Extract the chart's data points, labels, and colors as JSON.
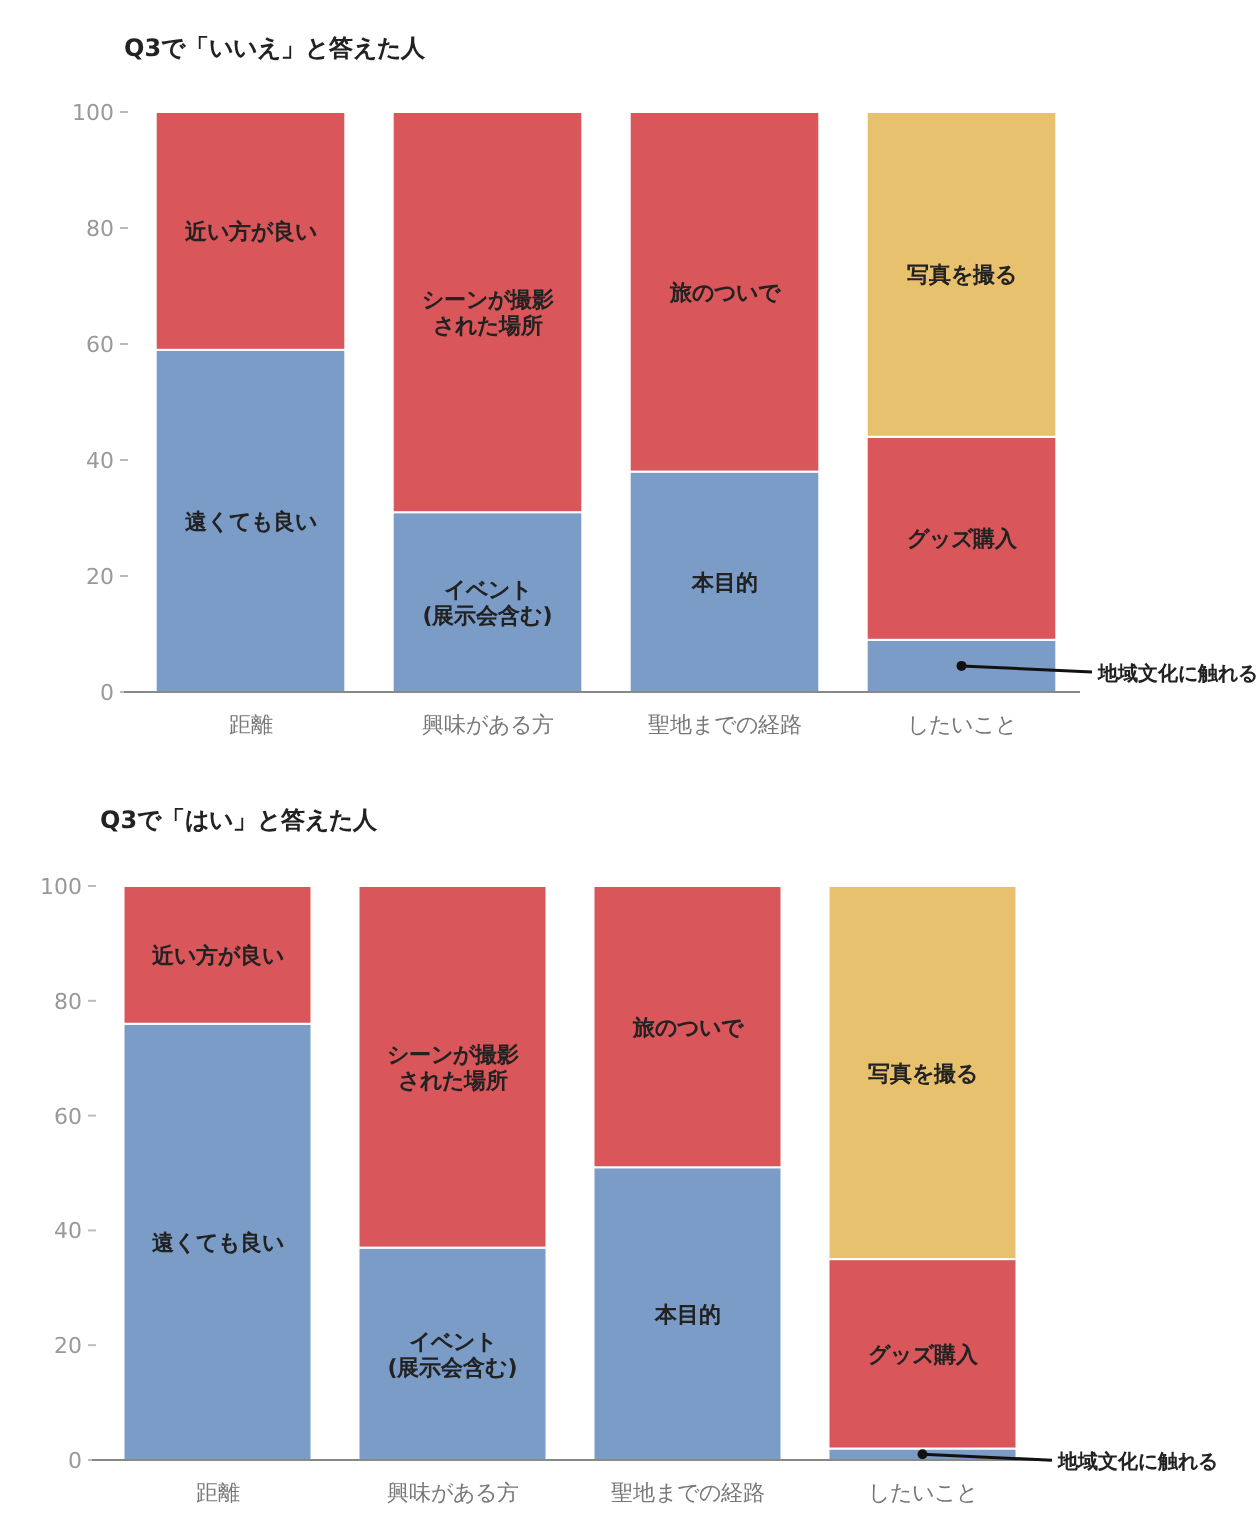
{
  "chart_data": [
    {
      "type": "bar",
      "title": "Q3で「いいえ」と答えた人",
      "stacked": true,
      "categories": [
        "距離",
        "興味がある方",
        "聖地までの経路",
        "したいこと"
      ],
      "ylim": [
        0,
        100
      ],
      "yticks": [
        0,
        20,
        40,
        60,
        80,
        100
      ],
      "series": [
        {
          "color": "#7a9cc6",
          "values": [
            59,
            31,
            38,
            9
          ],
          "value_labels": [
            "遠くても良い",
            "イベント\n(展示会含む)",
            "本目的",
            null
          ]
        },
        {
          "color": "#d9575b",
          "values": [
            41,
            69,
            62,
            35
          ],
          "value_labels": [
            "近い方が良い",
            "シーンが撮影された場所",
            "旅のついで",
            "グッズ購入"
          ]
        },
        {
          "color": "#e8c16e",
          "values": [
            null,
            null,
            null,
            56
          ],
          "value_labels": [
            null,
            null,
            null,
            "写真を撮る"
          ]
        }
      ],
      "annotations": [
        {
          "text": "地域文化に触れる",
          "x": "したいこと",
          "y": 4.5
        }
      ]
    },
    {
      "type": "bar",
      "title": "Q3で「はい」と答えた人",
      "stacked": true,
      "categories": [
        "距離",
        "興味がある方",
        "聖地までの経路",
        "したいこと"
      ],
      "ylim": [
        0,
        100
      ],
      "yticks": [
        0,
        20,
        40,
        60,
        80,
        100
      ],
      "series": [
        {
          "color": "#7a9cc6",
          "values": [
            76,
            37,
            51,
            2
          ],
          "value_labels": [
            "遠くても良い",
            "イベント\n(展示会含む)",
            "本目的",
            null
          ]
        },
        {
          "color": "#d9575b",
          "values": [
            24,
            63,
            49,
            33
          ],
          "value_labels": [
            "近い方が良い",
            "シーンが撮影された場所",
            "旅のついで",
            "グッズ購入"
          ]
        },
        {
          "color": "#e8c16e",
          "values": [
            null,
            null,
            null,
            65
          ],
          "value_labels": [
            null,
            null,
            null,
            "写真を撮る"
          ]
        }
      ],
      "annotations": [
        {
          "text": "地域文化に触れる",
          "x": "したいこと",
          "y": 1
        }
      ]
    }
  ]
}
